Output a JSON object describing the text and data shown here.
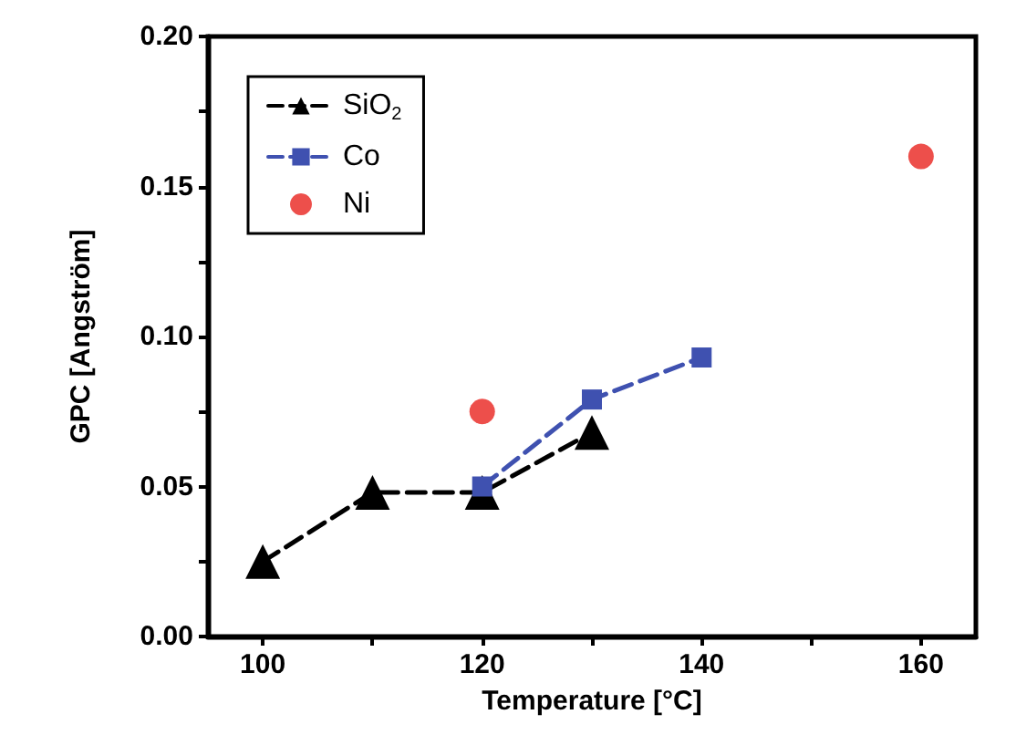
{
  "chart_data": {
    "type": "line",
    "xlabel": "Temperature [°C]",
    "ylabel": "GPC [Angström]",
    "xlim": [
      95,
      165
    ],
    "ylim": [
      0,
      0.2
    ],
    "xticks": [
      100,
      {
        "value": 110,
        "label": null
      },
      120,
      {
        "value": 130,
        "label": null
      },
      140,
      {
        "value": 150,
        "label": null
      },
      160
    ],
    "yticks": [
      {
        "value": 0,
        "label": "0.00"
      },
      {
        "value": 0.025,
        "label": null
      },
      {
        "value": 0.05,
        "label": "0.05"
      },
      {
        "value": 0.075,
        "label": null
      },
      {
        "value": 0.1,
        "label": "0.10"
      },
      {
        "value": 0.125,
        "label": null
      },
      {
        "value": 0.15,
        "label": "0.15"
      },
      {
        "value": 0.175,
        "label": null
      },
      {
        "value": 0.2,
        "label": "0.20"
      }
    ],
    "grid": false,
    "legend": "top left",
    "series": [
      {
        "name": "SiO$_{2}$",
        "color": "#000000",
        "marker": "triangle",
        "line_style": "dashed",
        "x": [
          100,
          110,
          120,
          130
        ],
        "values": [
          0.025,
          0.048,
          0.048,
          0.068
        ]
      },
      {
        "name": "Co",
        "color": "#3f51b0",
        "marker": "square",
        "line_style": "dashed",
        "x": [
          120,
          130,
          140
        ],
        "values": [
          0.05,
          0.079,
          0.093
        ]
      },
      {
        "name": "Ni",
        "color": "#e8231e",
        "type": "scatter",
        "marker": "circle",
        "x": [
          120,
          160
        ],
        "values": [
          0.075,
          0.16
        ]
      }
    ]
  }
}
